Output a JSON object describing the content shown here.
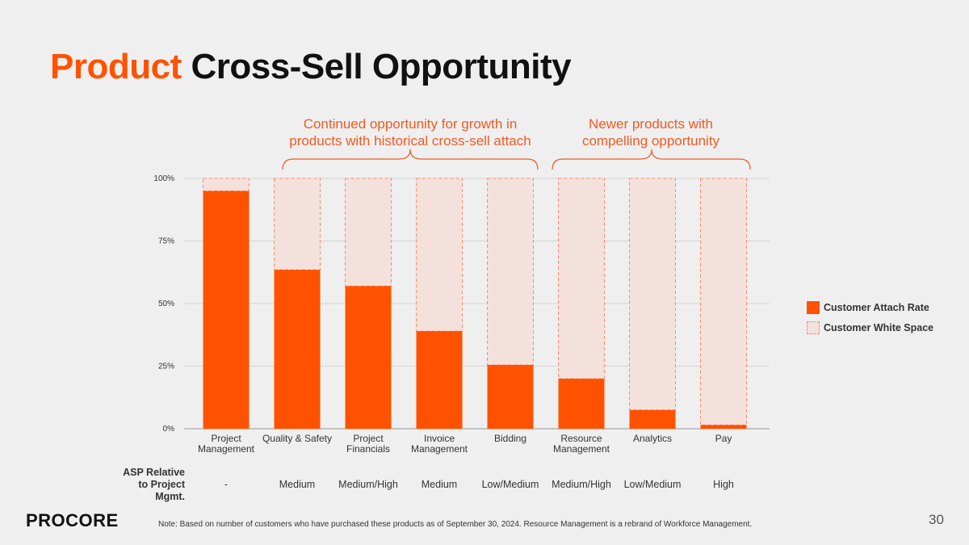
{
  "title": {
    "accent": "Product",
    "rest": "Cross-Sell Opportunity"
  },
  "annotations": [
    {
      "text": "Continued opportunity for growth in products with historical cross-sell attach"
    },
    {
      "text": "Newer products with compelling opportunity"
    }
  ],
  "chart_data": {
    "type": "bar",
    "stacked": true,
    "categories": [
      [
        "Project",
        "Management"
      ],
      [
        "Quality & Safety"
      ],
      [
        "Project",
        "Financials"
      ],
      [
        "Invoice",
        "Management"
      ],
      [
        "Bidding"
      ],
      [
        "Resource",
        "Management"
      ],
      [
        "Analytics"
      ],
      [
        "Pay"
      ]
    ],
    "series": [
      {
        "name": "Customer Attach Rate",
        "color": "#ff5200",
        "values": [
          95,
          63.5,
          57,
          39,
          25.5,
          20,
          7.5,
          1.5
        ]
      },
      {
        "name": "Customer White Space",
        "color": "#f4e1dc",
        "values": [
          5,
          36.5,
          43,
          61,
          74.5,
          80,
          92.5,
          98.5
        ]
      }
    ],
    "yticks": [
      "0%",
      "25%",
      "50%",
      "75%",
      "100%"
    ],
    "ylim": [
      0,
      100
    ],
    "legend_position": "right",
    "grid": true
  },
  "legend": [
    {
      "label": "Customer Attach Rate"
    },
    {
      "label": "Customer White Space"
    }
  ],
  "asp": {
    "label": "ASP Relative to Project Mgmt.",
    "values": [
      "-",
      "Medium",
      "Medium/High",
      "Medium",
      "Low/Medium",
      "Medium/High",
      "Low/Medium",
      "High"
    ]
  },
  "footer": {
    "logo": "PROCORE",
    "note": "Note: Based on number of customers who have purchased these products as of September 30, 2024. Resource Management is a rebrand of Workforce Management.",
    "page": "30"
  }
}
